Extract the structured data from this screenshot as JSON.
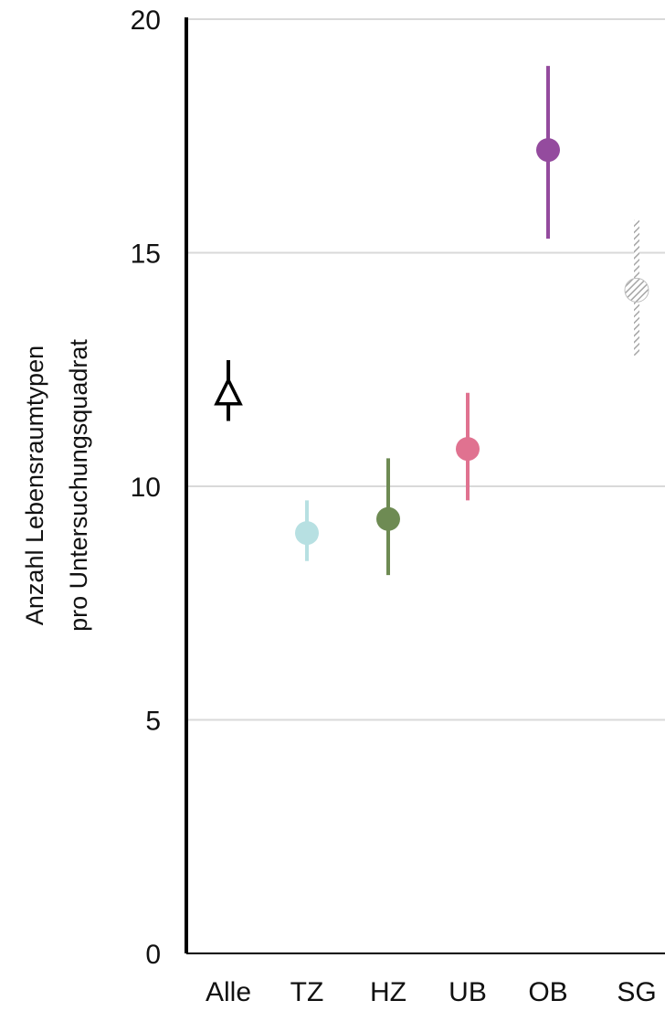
{
  "chart_data": {
    "type": "scatter",
    "title": "",
    "ylabel_lines": [
      "Anzahl Lebensraumtypen",
      "pro Untersuchungsquadrat"
    ],
    "xlabel": "",
    "ylim": [
      0,
      20
    ],
    "yticks": [
      0,
      5,
      10,
      15,
      20
    ],
    "grid": true,
    "categories": [
      "Alle",
      "TZ",
      "HZ",
      "UB",
      "OB",
      "SG"
    ],
    "points": [
      {
        "category": "Alle",
        "value": 12.0,
        "low": 11.4,
        "high": 12.7,
        "color": "#000000",
        "marker": "open-triangle"
      },
      {
        "category": "TZ",
        "value": 9.0,
        "low": 8.4,
        "high": 9.7,
        "color": "#b7e0e2",
        "marker": "circle"
      },
      {
        "category": "HZ",
        "value": 9.3,
        "low": 8.1,
        "high": 10.6,
        "color": "#6e8b53",
        "marker": "circle"
      },
      {
        "category": "UB",
        "value": 10.8,
        "low": 9.7,
        "high": 12.0,
        "color": "#e07290",
        "marker": "circle"
      },
      {
        "category": "OB",
        "value": 17.2,
        "low": 15.3,
        "high": 19.0,
        "color": "#944b9e",
        "marker": "circle"
      },
      {
        "category": "SG",
        "value": 14.2,
        "low": 12.8,
        "high": 15.7,
        "color": "#a6a6a6",
        "marker": "hatched-circle"
      }
    ]
  }
}
